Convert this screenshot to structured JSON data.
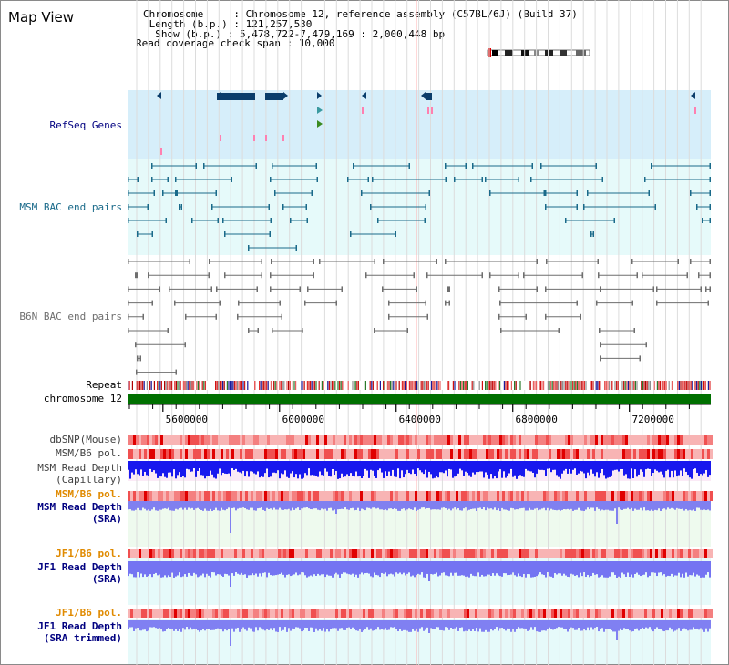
{
  "header": {
    "title": "Map View",
    "info_lines": [
      "Chromosome     : Chromosome 12, reference assembly (C57BL/6J) (Build 37)",
      " Length (b.p.) : 121,257,530",
      "  Show (b.p.) : 5,478,722-7,479,169 : 2,000,448 bp",
      "Read coverage check span : 10,000"
    ]
  },
  "axis": {
    "start_bp": 5478722,
    "end_bp": 7479169,
    "ticks": [
      5600000,
      6000000,
      6400000,
      6800000,
      7200000
    ],
    "tick_labels": [
      "5600000",
      "6000000",
      "6400000",
      "6800000",
      "7200000"
    ]
  },
  "tracks": {
    "refseq_label": "RefSeq Genes",
    "msm_bac_label": "MSM BAC end pairs",
    "b6n_bac_label": "B6N BAC end pairs",
    "repeat_label": "Repeat",
    "chromosome_label": "chromosome 12",
    "dbsnp_label": "dbSNP(Mouse)",
    "msm_b6_pol_label": "MSM/B6 pol.",
    "msm_depth_cap_label": [
      "MSM Read Depth",
      "(Capillary)"
    ],
    "msm_b6_pol2_label": "MSM/B6 pol.",
    "msm_depth_sra_label": [
      "MSM Read Depth",
      "(SRA)"
    ],
    "jf1_b6_pol_label": "JF1/B6 pol.",
    "jf1_depth_sra_label": [
      "JF1 Read Depth",
      "(SRA)"
    ],
    "jf1_b6_pol2_label": "JF1/B6 pol.",
    "jf1_depth_trim_label": [
      "JF1 Read Depth",
      "(SRA trimmed)"
    ]
  },
  "colors": {
    "refseq_bg": "#d6eefa",
    "msm_bg": "#e6fafa",
    "gene": "#0a3d6b",
    "msm_pair": "#1a6a8a",
    "b6n_pair": "#6e6e6e",
    "chromosome_bar": "#007000",
    "label_navy": "#000080",
    "label_teal": "#1a6a8a",
    "label_orange": "#e08a00",
    "depth_capillary": "#1010ee",
    "depth_sra": "#7878f0"
  }
}
